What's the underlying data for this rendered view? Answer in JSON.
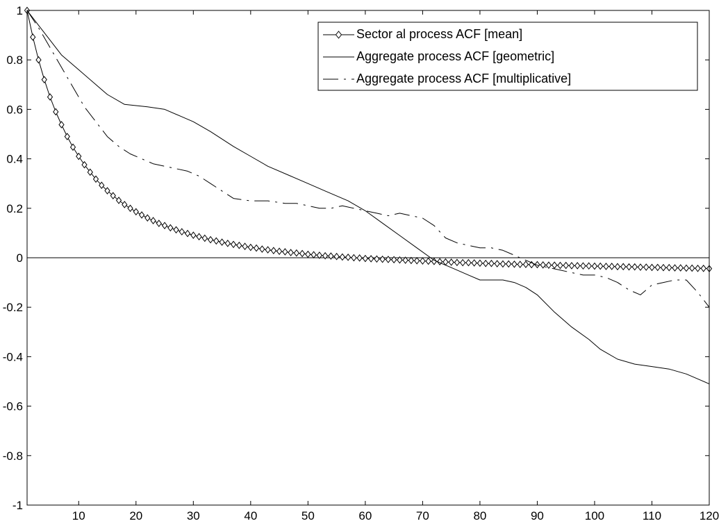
{
  "chart_data": {
    "type": "line",
    "title": "",
    "xlabel": "",
    "ylabel": "",
    "xlim": [
      1,
      120
    ],
    "ylim": [
      -1,
      1
    ],
    "xticks": [
      10,
      20,
      30,
      40,
      50,
      60,
      70,
      80,
      90,
      100,
      110,
      120
    ],
    "xtick_labels": [
      "10",
      "20",
      "30",
      "40",
      "50",
      "60",
      "70",
      "80",
      "90",
      "100",
      "110",
      "120"
    ],
    "yticks": [
      1,
      0.8,
      0.6,
      0.4,
      0.2,
      0,
      -0.2,
      -0.4,
      -0.6,
      -0.8,
      -1
    ],
    "ytick_labels": [
      "1",
      "0.8",
      "0.6",
      "0.4",
      "0.2",
      "0",
      "-0.2",
      "-0.4",
      "-0.6",
      "-0.8",
      "-1"
    ],
    "grid": false,
    "legend_position": "top-right",
    "zero_line": true,
    "colors": {
      "line": "#000000",
      "background": "#ffffff"
    },
    "series": [
      {
        "name": "Sector al process ACF [mean]",
        "style": "solid-diamond",
        "x": [
          1,
          2,
          3,
          4,
          5,
          6,
          7,
          8,
          9,
          10,
          11,
          12,
          13,
          14,
          15,
          16,
          17,
          18,
          19,
          20,
          21,
          22,
          23,
          24,
          25,
          26,
          27,
          28,
          29,
          30,
          31,
          32,
          33,
          34,
          35,
          36,
          37,
          38,
          39,
          40,
          41,
          42,
          43,
          44,
          45,
          46,
          47,
          48,
          49,
          50,
          51,
          52,
          53,
          54,
          55,
          56,
          57,
          58,
          59,
          60,
          61,
          62,
          63,
          64,
          65,
          66,
          67,
          68,
          69,
          70,
          71,
          72,
          73,
          74,
          75,
          76,
          77,
          78,
          79,
          80,
          81,
          82,
          83,
          84,
          85,
          86,
          87,
          88,
          89,
          90,
          91,
          92,
          93,
          94,
          95,
          96,
          97,
          98,
          99,
          100,
          101,
          102,
          103,
          104,
          105,
          106,
          107,
          108,
          109,
          110,
          111,
          112,
          113,
          114,
          115,
          116,
          117,
          118,
          119,
          120
        ],
        "y": [
          1,
          0.892,
          0.8,
          0.72,
          0.65,
          0.59,
          0.538,
          0.49,
          0.447,
          0.41,
          0.376,
          0.346,
          0.318,
          0.293,
          0.271,
          0.251,
          0.232,
          0.215,
          0.2,
          0.186,
          0.173,
          0.161,
          0.15,
          0.139,
          0.13,
          0.121,
          0.113,
          0.105,
          0.098,
          0.091,
          0.085,
          0.079,
          0.073,
          0.068,
          0.063,
          0.058,
          0.054,
          0.05,
          0.046,
          0.042,
          0.039,
          0.035,
          0.032,
          0.029,
          0.026,
          0.024,
          0.021,
          0.019,
          0.017,
          0.014,
          0.012,
          0.01,
          0.008,
          0.007,
          0.005,
          0.003,
          0.002,
          0,
          -0.001,
          -0.003,
          -0.004,
          -0.005,
          -0.006,
          -0.007,
          -0.008,
          -0.009,
          -0.01,
          -0.011,
          -0.012,
          -0.013,
          -0.014,
          -0.015,
          -0.016,
          -0.017,
          -0.018,
          -0.019,
          -0.02,
          -0.02,
          -0.021,
          -0.022,
          -0.023,
          -0.023,
          -0.024,
          -0.025,
          -0.025,
          -0.026,
          -0.027,
          -0.027,
          -0.028,
          -0.028,
          -0.029,
          -0.03,
          -0.03,
          -0.031,
          -0.031,
          -0.032,
          -0.032,
          -0.033,
          -0.033,
          -0.034,
          -0.034,
          -0.035,
          -0.035,
          -0.036,
          -0.036,
          -0.037,
          -0.037,
          -0.038,
          -0.038,
          -0.039,
          -0.039,
          -0.04,
          -0.04,
          -0.041,
          -0.041,
          -0.042,
          -0.042,
          -0.043,
          -0.043,
          -0.044
        ]
      },
      {
        "name": "Aggregate process ACF [geometric]",
        "style": "solid",
        "x": [
          1,
          3,
          5,
          7,
          10,
          13,
          15,
          18,
          22,
          25,
          28,
          30,
          33,
          37,
          40,
          43,
          47,
          50,
          53,
          57,
          60,
          63,
          66,
          69,
          72,
          75,
          78,
          80,
          82,
          84,
          86,
          88,
          90,
          93,
          96,
          99,
          101,
          104,
          107,
          110,
          113,
          116,
          118,
          120
        ],
        "y": [
          1,
          0.94,
          0.88,
          0.82,
          0.76,
          0.7,
          0.66,
          0.62,
          0.61,
          0.6,
          0.57,
          0.55,
          0.51,
          0.45,
          0.41,
          0.37,
          0.33,
          0.3,
          0.27,
          0.23,
          0.19,
          0.14,
          0.09,
          0.04,
          -0.01,
          -0.04,
          -0.07,
          -0.09,
          -0.09,
          -0.09,
          -0.1,
          -0.12,
          -0.15,
          -0.22,
          -0.28,
          -0.33,
          -0.37,
          -0.41,
          -0.43,
          -0.44,
          -0.45,
          -0.47,
          -0.49,
          -0.51
        ]
      },
      {
        "name": "Aggregate process ACF [multiplicative]",
        "style": "dash-dot",
        "x": [
          1,
          3,
          5,
          7,
          9,
          11,
          13,
          15,
          17,
          19,
          21,
          23,
          25,
          27,
          29,
          31,
          33,
          35,
          37,
          40,
          43,
          46,
          48,
          50,
          52,
          54,
          56,
          58,
          60,
          62,
          64,
          66,
          68,
          70,
          72,
          74,
          76,
          78,
          80,
          82,
          84,
          86,
          88,
          90,
          92,
          94,
          96,
          98,
          100,
          102,
          104,
          106,
          108,
          110,
          112,
          114,
          116,
          118,
          120
        ],
        "y": [
          1,
          0.93,
          0.85,
          0.77,
          0.69,
          0.61,
          0.55,
          0.49,
          0.45,
          0.42,
          0.4,
          0.38,
          0.37,
          0.36,
          0.35,
          0.33,
          0.3,
          0.27,
          0.24,
          0.23,
          0.23,
          0.22,
          0.22,
          0.21,
          0.2,
          0.2,
          0.21,
          0.2,
          0.19,
          0.18,
          0.17,
          0.18,
          0.17,
          0.16,
          0.13,
          0.08,
          0.06,
          0.05,
          0.04,
          0.04,
          0.03,
          0.01,
          -0.01,
          -0.03,
          -0.04,
          -0.05,
          -0.06,
          -0.07,
          -0.07,
          -0.08,
          -0.1,
          -0.13,
          -0.15,
          -0.11,
          -0.1,
          -0.09,
          -0.09,
          -0.14,
          -0.2
        ]
      }
    ]
  }
}
